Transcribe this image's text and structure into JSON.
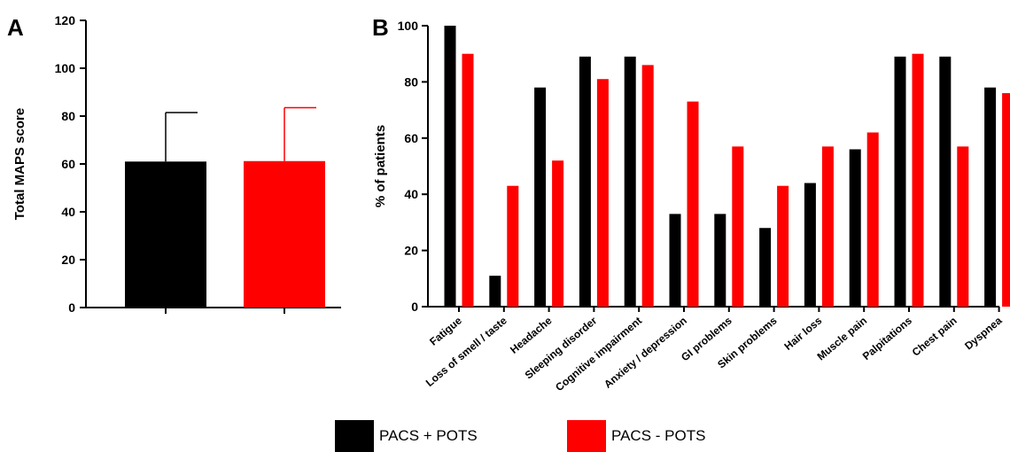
{
  "chart_data": [
    {
      "type": "bar",
      "panel_label": "A",
      "ylabel": "Total MAPS score",
      "ylim": [
        0,
        120
      ],
      "yticks": [
        0,
        20,
        40,
        60,
        80,
        100,
        120
      ],
      "series": [
        {
          "name": "PACS + POTS",
          "value": 61,
          "error": 81.5,
          "color": "#000000"
        },
        {
          "name": "PACS - POTS",
          "value": 61.2,
          "error": 83.5,
          "color": "#ff0000"
        }
      ]
    },
    {
      "type": "bar",
      "panel_label": "B",
      "ylabel": "% of patients",
      "ylim": [
        0,
        100
      ],
      "yticks": [
        0,
        20,
        40,
        60,
        80,
        100
      ],
      "categories": [
        "Fatigue",
        "Loss of smell / taste",
        "Headache",
        "Sleeping disorder",
        "Cognitive impairment",
        "Anxiety / depression",
        "GI problems",
        "Skin problems",
        "Hair loss",
        "Muscle pain",
        "Palpitations",
        "Chest pain",
        "Dyspnea"
      ],
      "series": [
        {
          "name": "PACS + POTS",
          "color": "#000000",
          "values": [
            100,
            11,
            78,
            89,
            89,
            33,
            33,
            28,
            44,
            56,
            89,
            89,
            78
          ]
        },
        {
          "name": "PACS - POTS",
          "color": "#ff0000",
          "values": [
            90,
            43,
            52,
            81,
            86,
            73,
            57,
            43,
            57,
            62,
            90,
            57,
            76
          ]
        }
      ]
    }
  ],
  "legend": {
    "items": [
      {
        "label": "PACS + POTS",
        "color": "#000000"
      },
      {
        "label": "PACS - POTS",
        "color": "#ff0000"
      }
    ]
  }
}
